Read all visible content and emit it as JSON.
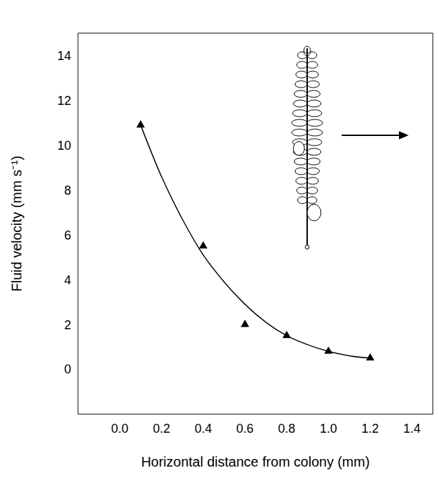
{
  "chart_data": {
    "type": "scatter",
    "x_label": "Horizontal distance from colony (mm)",
    "y_label": "Fluid velocity (mm s⁻¹)",
    "xlim": [
      -0.2,
      1.5
    ],
    "ylim": [
      -2,
      15
    ],
    "xticks": [
      {
        "value": 0.0,
        "label": "0.0"
      },
      0.2,
      0.4,
      0.6,
      0.8,
      {
        "value": 1.0,
        "label": "1.0"
      },
      1.2,
      1.4
    ],
    "yticks": [
      0,
      2,
      4,
      6,
      8,
      10,
      12,
      14
    ],
    "grid": false,
    "series": [
      {
        "type": "scatter",
        "marker": "triangle",
        "color": "#000000",
        "x": [
          0.1,
          0.4,
          0.6,
          0.8,
          1.0,
          1.2
        ],
        "values": [
          10.9,
          5.5,
          2.0,
          1.5,
          0.8,
          0.5
        ]
      },
      {
        "type": "line",
        "line_style": "solid",
        "color": "#000000",
        "x": [
          0.1,
          0.2,
          0.3,
          0.4,
          0.5,
          0.6,
          0.7,
          0.8,
          0.9,
          1.0,
          1.1,
          1.2
        ],
        "values": [
          10.9,
          8.6,
          6.7,
          5.1,
          3.9,
          2.9,
          2.1,
          1.5,
          1.1,
          0.8,
          0.6,
          0.5
        ]
      }
    ]
  }
}
